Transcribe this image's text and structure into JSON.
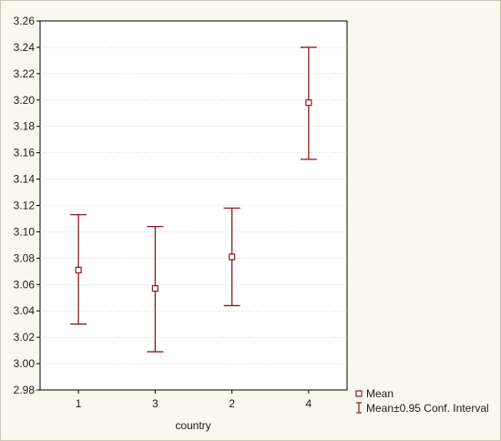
{
  "chart_data": {
    "type": "errorbar",
    "categories": [
      "1",
      "3",
      "2",
      "4"
    ],
    "series": [
      {
        "name": "Mean",
        "values": [
          3.071,
          3.057,
          3.081,
          3.198
        ],
        "lower": [
          3.03,
          3.009,
          3.044,
          3.155
        ],
        "upper": [
          3.113,
          3.104,
          3.118,
          3.24
        ]
      }
    ],
    "xlabel": "country",
    "ylabel": "",
    "ylim": [
      2.98,
      3.26
    ],
    "yticks": [
      "2.98",
      "3.00",
      "3.02",
      "3.04",
      "3.06",
      "3.08",
      "3.10",
      "3.12",
      "3.14",
      "3.16",
      "3.18",
      "3.20",
      "3.22",
      "3.24",
      "3.26"
    ],
    "grid": true,
    "legend_position": "bottom-right",
    "legend": {
      "mean_label": "Mean",
      "interval_label": "Mean±0.95 Conf. Interval"
    },
    "colors": {
      "marker": "#8b1a1a",
      "grid": "#bdbdbd",
      "axis": "#000000",
      "background": "#f9f8ee",
      "plot_background": "#ffffff"
    }
  }
}
